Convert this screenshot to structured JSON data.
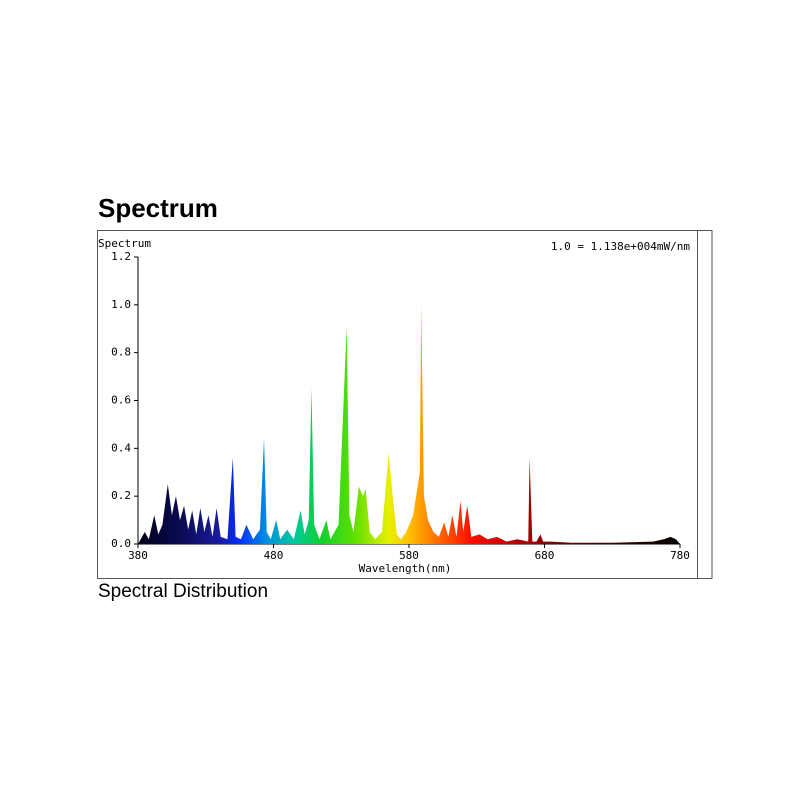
{
  "page_title": "Spectrum",
  "caption": "Spectral Distribution",
  "chart_data": {
    "type": "area",
    "y_axis_label": "Spectrum",
    "annotation": "1.0 = 1.138e+004mW/nm",
    "x_axis_label": "Wavelength(nm)",
    "xlim": [
      380,
      780
    ],
    "ylim": [
      0,
      1.2
    ],
    "xticks": [
      380,
      480,
      580,
      680,
      780
    ],
    "yticks": [
      {
        "value": 0,
        "label": "0.0"
      },
      {
        "value": 0.2,
        "label": "0.2"
      },
      {
        "value": 0.4,
        "label": "0.4"
      },
      {
        "value": 0.6,
        "label": "0.6"
      },
      {
        "value": 0.8,
        "label": "0.8"
      },
      {
        "value": 1.0,
        "label": "1.0"
      },
      {
        "value": 1.2,
        "label": "1.2"
      }
    ],
    "spectrum_colors": [
      {
        "x": 380,
        "color": "#000018"
      },
      {
        "x": 410,
        "color": "#0a0a50"
      },
      {
        "x": 440,
        "color": "#1a1aa0"
      },
      {
        "x": 455,
        "color": "#0030ff"
      },
      {
        "x": 475,
        "color": "#0090e0"
      },
      {
        "x": 495,
        "color": "#00c8a0"
      },
      {
        "x": 515,
        "color": "#10d030"
      },
      {
        "x": 540,
        "color": "#60e000"
      },
      {
        "x": 565,
        "color": "#e8f000"
      },
      {
        "x": 580,
        "color": "#ffc000"
      },
      {
        "x": 600,
        "color": "#ff7000"
      },
      {
        "x": 625,
        "color": "#ff1000"
      },
      {
        "x": 650,
        "color": "#d00000"
      },
      {
        "x": 690,
        "color": "#700000"
      },
      {
        "x": 740,
        "color": "#300000"
      },
      {
        "x": 780,
        "color": "#000000"
      }
    ],
    "x": [
      380,
      385,
      388,
      392,
      395,
      398,
      402,
      405,
      408,
      411,
      414,
      417,
      420,
      423,
      426,
      429,
      432,
      435,
      438,
      441,
      446,
      450,
      452,
      456,
      460,
      465,
      470,
      473,
      475,
      478,
      482,
      485,
      490,
      495,
      500,
      503,
      506,
      508,
      510,
      514,
      519,
      522,
      528,
      534,
      536,
      539,
      543,
      546,
      548,
      551,
      555,
      560,
      565,
      568,
      571,
      574,
      578,
      583,
      588,
      589,
      591,
      594,
      598,
      602,
      606,
      609,
      612,
      615,
      618,
      620,
      623,
      626,
      632,
      638,
      645,
      652,
      660,
      668,
      669,
      671,
      674,
      677,
      679,
      684,
      700,
      730,
      760,
      768,
      773,
      777,
      780
    ],
    "values": [
      0,
      0.05,
      0.02,
      0.12,
      0.04,
      0.08,
      0.25,
      0.12,
      0.2,
      0.1,
      0.16,
      0.06,
      0.14,
      0.04,
      0.15,
      0.05,
      0.12,
      0.03,
      0.15,
      0.03,
      0.02,
      0.36,
      0.03,
      0.02,
      0.08,
      0.02,
      0.06,
      0.44,
      0.05,
      0.02,
      0.1,
      0.02,
      0.06,
      0.02,
      0.14,
      0.04,
      0.1,
      0.65,
      0.08,
      0.02,
      0.1,
      0.02,
      0.08,
      0.91,
      0.12,
      0.05,
      0.24,
      0.2,
      0.23,
      0.05,
      0.02,
      0.05,
      0.38,
      0.2,
      0.04,
      0.02,
      0.05,
      0.12,
      0.3,
      1.0,
      0.2,
      0.1,
      0.05,
      0.03,
      0.09,
      0.03,
      0.12,
      0.03,
      0.18,
      0.05,
      0.16,
      0.03,
      0.04,
      0.02,
      0.03,
      0.01,
      0.02,
      0.01,
      0.36,
      0.01,
      0.01,
      0.04,
      0.01,
      0.01,
      0.005,
      0.005,
      0.01,
      0.02,
      0.03,
      0.02,
      0
    ]
  }
}
